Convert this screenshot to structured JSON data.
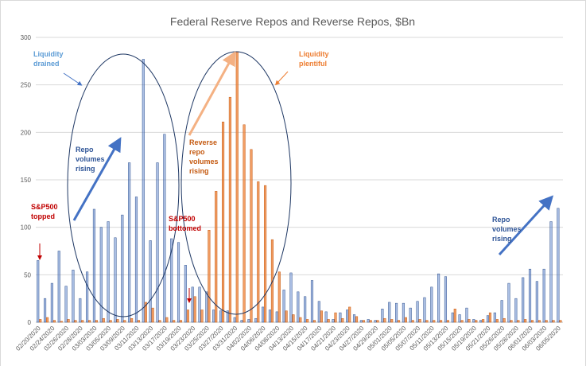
{
  "chart_data": {
    "type": "bar",
    "title": "Federal Reserve Repos and Reverse Repos, $Bn",
    "categories": [
      "02/20/2020",
      null,
      "02/24/2020",
      null,
      "02/26/2020",
      null,
      "02/28/2020",
      null,
      "03/03/2020",
      null,
      "03/05/2020",
      null,
      "03/09/2020",
      null,
      "03/11/2020",
      null,
      "03/13/2020",
      null,
      "03/17/2020",
      null,
      "03/19/2020",
      null,
      "03/23/2020",
      null,
      "03/25/2020",
      null,
      "03/27/2020",
      null,
      "03/31/2020",
      null,
      "04/02/2020",
      null,
      "04/06/2020",
      null,
      "04/08/2020",
      null,
      "04/13/2020",
      null,
      "04/15/2020",
      null,
      "04/17/2020",
      null,
      "04/21/2020",
      null,
      "04/23/2020",
      null,
      "04/27/2020",
      null,
      "04/29/2020",
      null,
      "05/01/2020",
      null,
      "05/05/2020",
      null,
      "05/07/2020",
      null,
      "05/11/2020",
      null,
      "05/13/2020",
      null,
      "05/15/2020",
      null,
      "05/19/2020",
      null,
      "05/21/2020",
      null,
      "05/26/2020",
      null,
      "05/28/2020",
      null,
      "06/01/2020",
      null,
      "06/03/2020",
      null,
      "06/05/2020"
    ],
    "series": [
      {
        "color": "#4472c4",
        "values": [
          65,
          25,
          41,
          75,
          38,
          55,
          25,
          53,
          119,
          100,
          106,
          89,
          113,
          168,
          132,
          277,
          86,
          168,
          198,
          88,
          84,
          60,
          37,
          37,
          32,
          13,
          12,
          12,
          5,
          2,
          3,
          4,
          16,
          13,
          11,
          34,
          52,
          32,
          27,
          44,
          22,
          11,
          3,
          10,
          13,
          8,
          2,
          3,
          2,
          14,
          21,
          20,
          20,
          15,
          22,
          26,
          37,
          51,
          48,
          10,
          8,
          15,
          3,
          2,
          7,
          10,
          23,
          41,
          25,
          47,
          56,
          43,
          56,
          106,
          120
        ]
      },
      {
        "color": "#ed7d31",
        "values": [
          3,
          5,
          2,
          1,
          3,
          2,
          2,
          2,
          2,
          4,
          2,
          3,
          2,
          4,
          2,
          21,
          15,
          2,
          5,
          2,
          2,
          13,
          27,
          13,
          97,
          138,
          211,
          237,
          285,
          208,
          182,
          148,
          144,
          87,
          53,
          12,
          8,
          5,
          3,
          2,
          12,
          3,
          10,
          4,
          16,
          6,
          2,
          2,
          2,
          4,
          3,
          2,
          5,
          2,
          3,
          2,
          2,
          2,
          2,
          14,
          2,
          3,
          2,
          3,
          10,
          3,
          4,
          2,
          2,
          3,
          2,
          2,
          2,
          2,
          2
        ]
      }
    ],
    "ylim": [
      0,
      300
    ],
    "yticks": [
      0,
      50,
      100,
      150,
      200,
      250,
      300
    ],
    "grid": true,
    "annotations": {
      "liquidity_drained": [
        "Liquidity",
        "drained"
      ],
      "repo_rising_left": [
        "Repo",
        "volumes",
        "rising"
      ],
      "sp500_topped": [
        "S&P500",
        "topped"
      ],
      "sp500_bottomed": [
        "S&P500",
        "bottomed"
      ],
      "reverse_repo_rising": [
        "Reverse",
        "repo",
        "volumes",
        "rising"
      ],
      "liquidity_plentiful": [
        "Liquidity",
        "plentiful"
      ],
      "repo_rising_right": [
        "Repo",
        "volumes",
        "rising"
      ]
    }
  }
}
